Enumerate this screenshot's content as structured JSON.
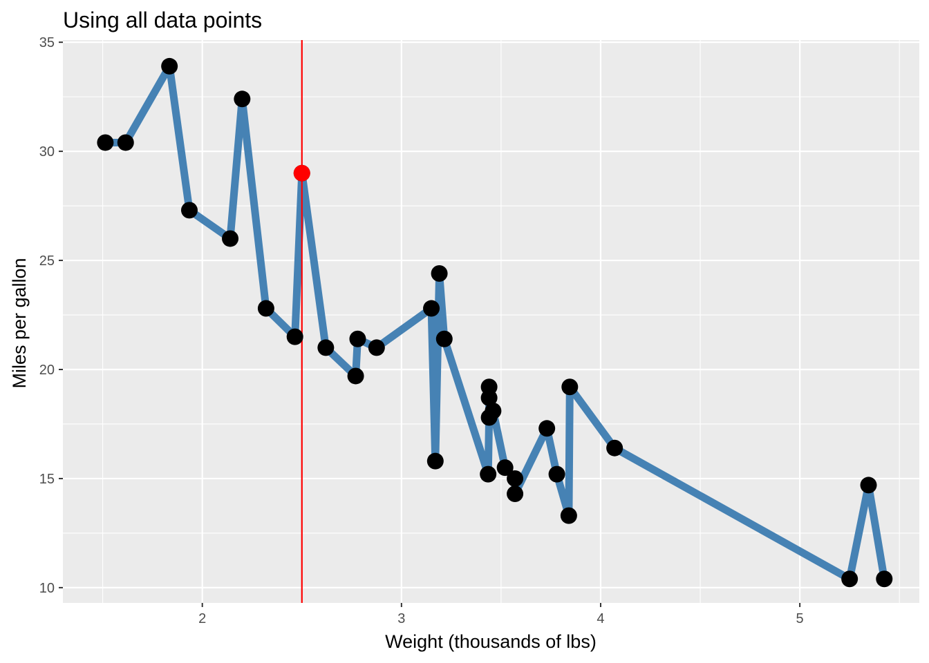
{
  "chart_data": {
    "type": "line",
    "title": "Using all data points",
    "xlabel": "Weight (thousands of lbs)",
    "ylabel": "Miles per gallon",
    "xlim": [
      1.3,
      5.6
    ],
    "ylim": [
      9.3,
      35.1
    ],
    "x_ticks": [
      2,
      3,
      4,
      5
    ],
    "y_ticks": [
      10,
      15,
      20,
      25,
      30,
      35
    ],
    "grid": true,
    "line_color": "#4682B4",
    "point_color": "#000000",
    "highlight_color": "#FF0000",
    "panel_background": "#EBEBEB",
    "vline": {
      "x": 2.5,
      "color": "#FF0000"
    },
    "highlight_point": {
      "x": 2.5,
      "y": 29.0
    },
    "series": [
      {
        "x": [
          1.513,
          1.615,
          1.835,
          1.935,
          2.14,
          2.2,
          2.32,
          2.465,
          2.5,
          2.62,
          2.77,
          2.78,
          2.875,
          3.15,
          3.17,
          3.19,
          3.215,
          3.435,
          3.44,
          3.44,
          3.44,
          3.46,
          3.52,
          3.57,
          3.57,
          3.73,
          3.78,
          3.84,
          3.845,
          4.07,
          5.25,
          5.345,
          5.424
        ],
        "y": [
          30.4,
          30.4,
          33.9,
          27.3,
          26.0,
          32.4,
          22.8,
          21.5,
          29.0,
          21.0,
          19.7,
          21.4,
          21.0,
          22.8,
          15.8,
          24.4,
          21.4,
          15.2,
          17.8,
          18.7,
          19.2,
          18.1,
          15.5,
          15.0,
          14.3,
          17.3,
          15.2,
          13.3,
          19.2,
          16.4,
          10.4,
          14.7,
          10.4
        ]
      }
    ]
  }
}
